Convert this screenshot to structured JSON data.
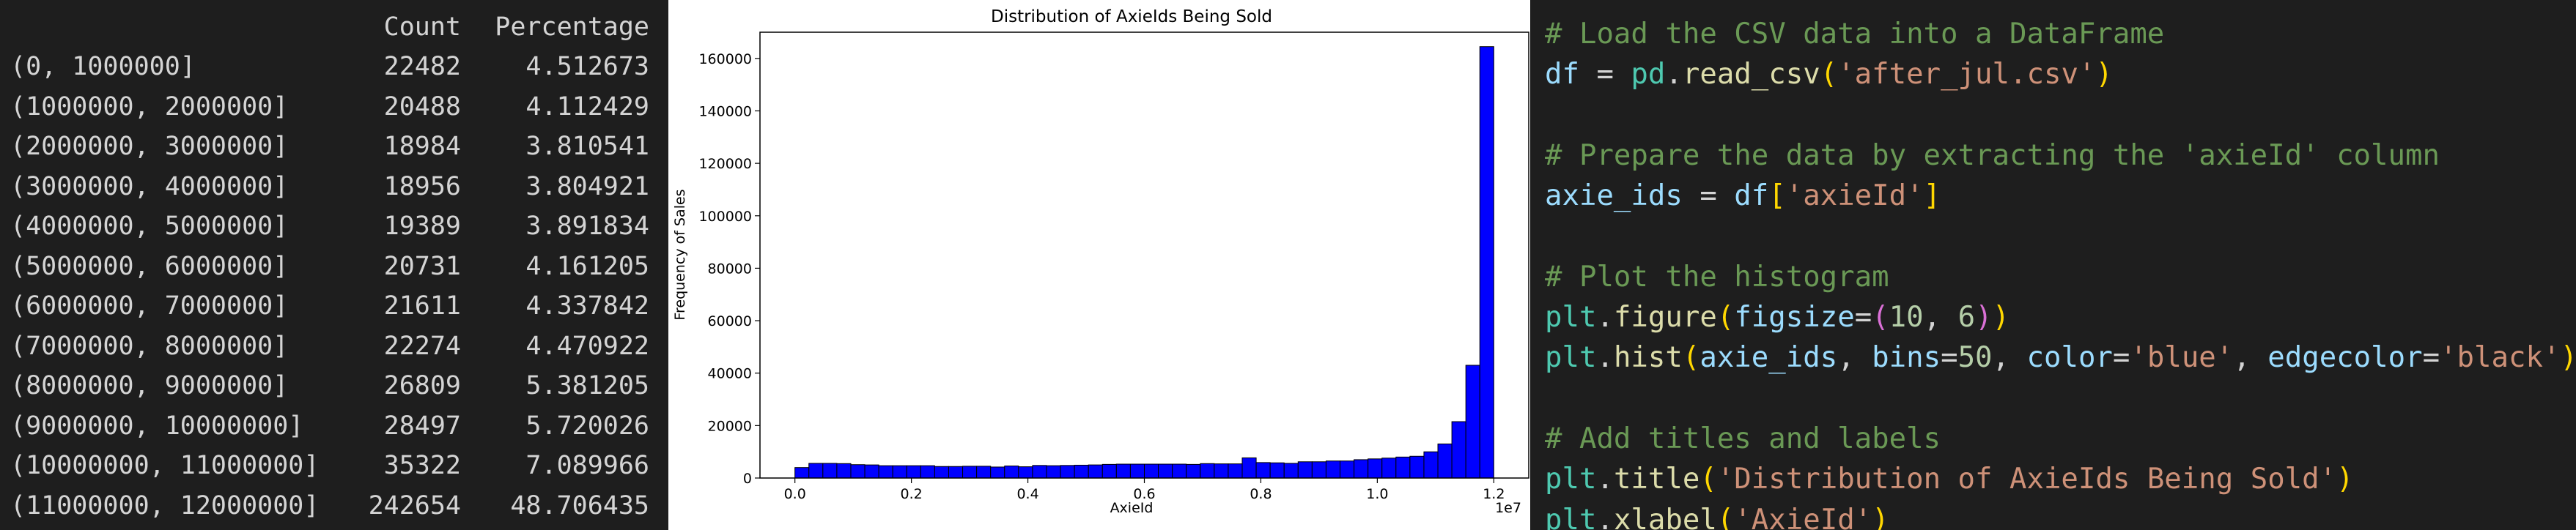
{
  "table": {
    "headers": [
      "",
      "Count",
      "Percentage"
    ],
    "rows": [
      [
        "(0, 1000000]",
        "22482",
        "4.512673"
      ],
      [
        "(1000000, 2000000]",
        "20488",
        "4.112429"
      ],
      [
        "(2000000, 3000000]",
        "18984",
        "3.810541"
      ],
      [
        "(3000000, 4000000]",
        "18956",
        "3.804921"
      ],
      [
        "(4000000, 5000000]",
        "19389",
        "3.891834"
      ],
      [
        "(5000000, 6000000]",
        "20731",
        "4.161205"
      ],
      [
        "(6000000, 7000000]",
        "21611",
        "4.337842"
      ],
      [
        "(7000000, 8000000]",
        "22274",
        "4.470922"
      ],
      [
        "(8000000, 9000000]",
        "26809",
        "5.381205"
      ],
      [
        "(9000000, 10000000]",
        "28497",
        "5.720026"
      ],
      [
        "(10000000, 11000000]",
        "35322",
        "7.089966"
      ],
      [
        "(11000000, 12000000]",
        "242654",
        "48.706435"
      ]
    ]
  },
  "chart_data": {
    "type": "bar",
    "title": "Distribution of AxieIds Being Sold",
    "xlabel": "AxieId",
    "ylabel": "Frequency of Sales",
    "x_offset_label": "1e7",
    "x_range": [
      0,
      1.2
    ],
    "bin_width": 0.024,
    "xlim": [
      -0.06,
      1.26
    ],
    "ylim": [
      0,
      170000
    ],
    "x_ticks": [
      0.0,
      0.2,
      0.4,
      0.6,
      0.8,
      1.0,
      1.2
    ],
    "x_tick_labels": [
      "0.0",
      "0.2",
      "0.4",
      "0.6",
      "0.8",
      "1.0",
      "1.2"
    ],
    "y_ticks": [
      0,
      20000,
      40000,
      60000,
      80000,
      100000,
      120000,
      140000,
      160000
    ],
    "y_tick_labels": [
      "0",
      "20000",
      "40000",
      "60000",
      "80000",
      "100000",
      "120000",
      "140000",
      "160000"
    ],
    "bar_color": "#0000ff",
    "edge_color": "#000000",
    "grid": false,
    "values": [
      4000,
      5600,
      5600,
      5500,
      5100,
      5000,
      4700,
      4700,
      4700,
      4700,
      4400,
      4400,
      4500,
      4500,
      4200,
      4600,
      4300,
      4800,
      4700,
      4800,
      4900,
      5000,
      5200,
      5300,
      5300,
      5300,
      5300,
      5300,
      5200,
      5500,
      5400,
      5400,
      7700,
      5900,
      5800,
      5600,
      6200,
      6200,
      6500,
      6500,
      7000,
      7300,
      7600,
      8000,
      8300,
      10000,
      13000,
      21500,
      43000,
      164500
    ]
  },
  "code": {
    "lines": [
      [
        [
          "# Load the CSV data into a DataFrame",
          "comment"
        ]
      ],
      [
        [
          "df",
          "var"
        ],
        [
          " = ",
          "op"
        ],
        [
          "pd",
          "mod"
        ],
        [
          ".",
          "op"
        ],
        [
          "read_csv",
          "func"
        ],
        [
          "(",
          "p1"
        ],
        [
          "'after_jul.csv'",
          "str"
        ],
        [
          ")",
          "p1"
        ]
      ],
      [],
      [
        [
          "# Prepare the data by extracting the 'axieId' column",
          "comment"
        ]
      ],
      [
        [
          "axie_ids",
          "var"
        ],
        [
          " = ",
          "op"
        ],
        [
          "df",
          "var"
        ],
        [
          "[",
          "p1"
        ],
        [
          "'axieId'",
          "str"
        ],
        [
          "]",
          "p1"
        ]
      ],
      [],
      [
        [
          "# Plot the histogram",
          "comment"
        ]
      ],
      [
        [
          "plt",
          "mod"
        ],
        [
          ".",
          "op"
        ],
        [
          "figure",
          "func"
        ],
        [
          "(",
          "p1"
        ],
        [
          "figsize",
          "var"
        ],
        [
          "=",
          "op"
        ],
        [
          "(",
          "p2"
        ],
        [
          "10",
          "num"
        ],
        [
          ", ",
          "op"
        ],
        [
          "6",
          "num"
        ],
        [
          ")",
          "p2"
        ],
        [
          ")",
          "p1"
        ]
      ],
      [
        [
          "plt",
          "mod"
        ],
        [
          ".",
          "op"
        ],
        [
          "hist",
          "func"
        ],
        [
          "(",
          "p1"
        ],
        [
          "axie_ids",
          "var"
        ],
        [
          ", ",
          "op"
        ],
        [
          "bins",
          "var"
        ],
        [
          "=",
          "op"
        ],
        [
          "50",
          "num"
        ],
        [
          ", ",
          "op"
        ],
        [
          "color",
          "var"
        ],
        [
          "=",
          "op"
        ],
        [
          "'blue'",
          "str"
        ],
        [
          ", ",
          "op"
        ],
        [
          "edgecolor",
          "var"
        ],
        [
          "=",
          "op"
        ],
        [
          "'black'",
          "str"
        ],
        [
          ")",
          "p1"
        ]
      ],
      [],
      [
        [
          "# Add titles and labels",
          "comment"
        ]
      ],
      [
        [
          "plt",
          "mod"
        ],
        [
          ".",
          "op"
        ],
        [
          "title",
          "func"
        ],
        [
          "(",
          "p1"
        ],
        [
          "'Distribution of AxieIds Being Sold'",
          "str"
        ],
        [
          ")",
          "p1"
        ]
      ],
      [
        [
          "plt",
          "mod"
        ],
        [
          ".",
          "op"
        ],
        [
          "xlabel",
          "func"
        ],
        [
          "(",
          "p1"
        ],
        [
          "'AxieId'",
          "str"
        ],
        [
          ")",
          "p1"
        ]
      ]
    ]
  }
}
